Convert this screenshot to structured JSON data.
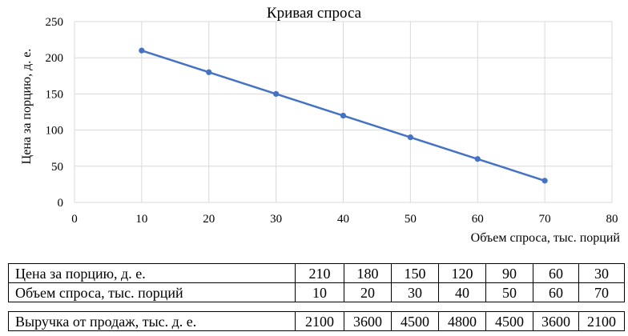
{
  "chart_data": {
    "type": "line",
    "title": "Кривая спроса",
    "xlabel": "Объем спроса, тыс. порций",
    "ylabel": "Цена за порцию, д. е.",
    "xlim": [
      0,
      80
    ],
    "ylim": [
      0,
      250
    ],
    "x_ticks": [
      0,
      10,
      20,
      30,
      40,
      50,
      60,
      70,
      80
    ],
    "y_ticks": [
      0,
      50,
      100,
      150,
      200,
      250
    ],
    "grid": true,
    "legend": false,
    "series": [
      {
        "x": [
          10,
          20,
          30,
          40,
          50,
          60,
          70
        ],
        "y": [
          210,
          180,
          150,
          120,
          90,
          60,
          30
        ],
        "color": "#4472C4"
      }
    ]
  },
  "table": {
    "price_label": "Цена за порцию, д. е.",
    "prices": [
      "210",
      "180",
      "150",
      "120",
      "90",
      "60",
      "30"
    ],
    "volume_label": "Объем спроса, тыс. порций",
    "volumes": [
      "10",
      "20",
      "30",
      "40",
      "50",
      "60",
      "70"
    ],
    "revenue_label": "Выручка от продаж, тыс. д. е.",
    "revenues": [
      "2100",
      "3600",
      "4500",
      "4800",
      "4500",
      "3600",
      "2100"
    ]
  }
}
